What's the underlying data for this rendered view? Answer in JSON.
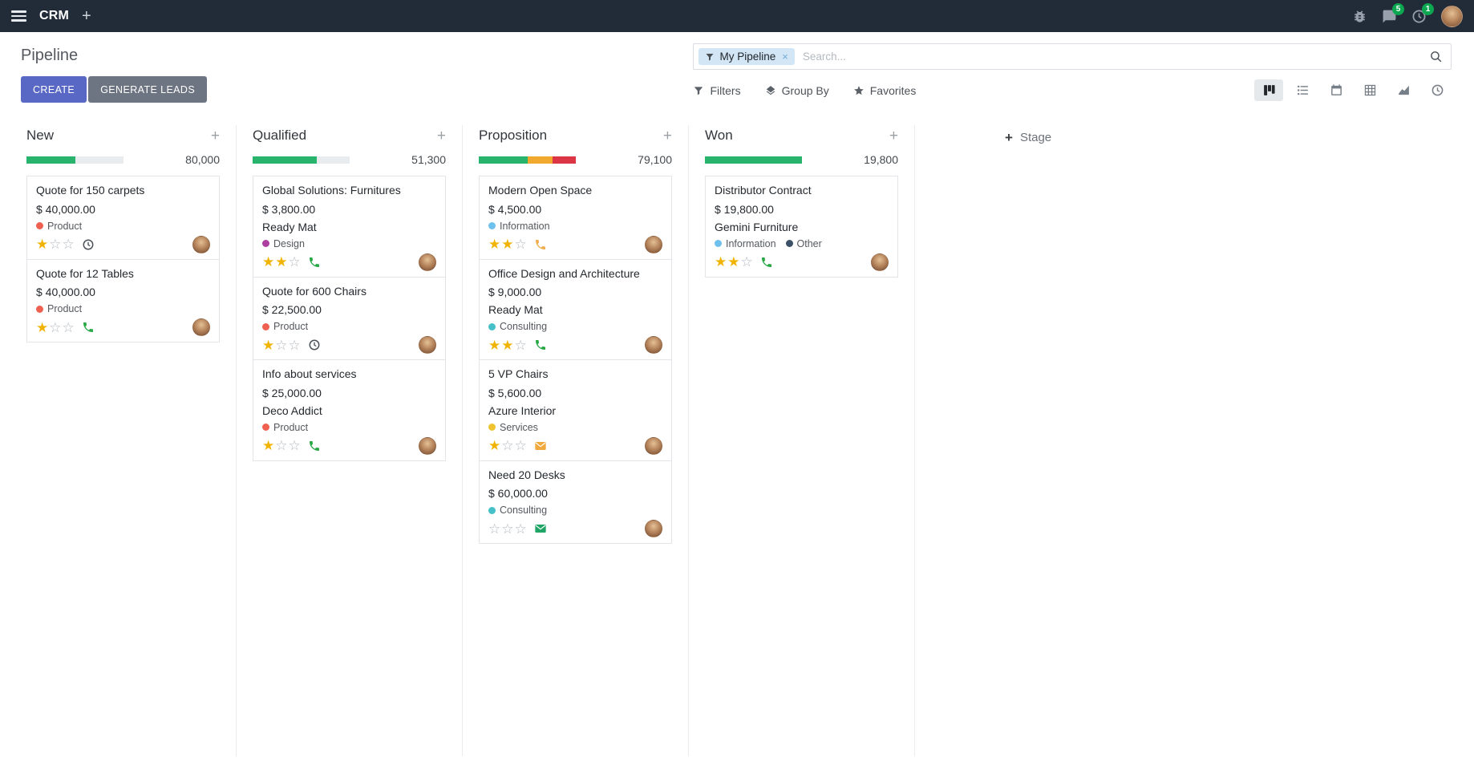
{
  "topbar": {
    "app_name": "CRM",
    "message_badge": "5",
    "activity_badge": "1",
    "icons": [
      "apps-menu-icon",
      "plus-icon",
      "debug-icon",
      "messages-icon",
      "activities-icon",
      "user-avatar"
    ]
  },
  "control_panel": {
    "title": "Pipeline",
    "create_label": "CREATE",
    "generate_leads_label": "GENERATE LEADS",
    "search": {
      "facet_label": "My Pipeline",
      "facet_remove": "×",
      "placeholder": "Search..."
    },
    "filters_label": "Filters",
    "group_by_label": "Group By",
    "favorites_label": "Favorites"
  },
  "view_switcher": {
    "views": [
      "kanban",
      "list",
      "calendar",
      "pivot",
      "graph",
      "activity"
    ],
    "active": "kanban"
  },
  "colors": {
    "primary_button": "#5a68c5",
    "secondary_button": "#6e7582",
    "progress_green": "#28b46c",
    "progress_yellow": "#f0a92e",
    "progress_red": "#dc3545",
    "star_gold": "#f0b400",
    "badge_green": "#0ca750",
    "facet_bg": "#d2e6f6"
  },
  "board": {
    "add_stage_label": "Stage",
    "columns": [
      {
        "name": "New",
        "total": "80,000",
        "progress_segments": [
          {
            "color": "#28b46c",
            "percent": 50
          }
        ],
        "cards": [
          {
            "title": "Quote for 150 carpets",
            "amount": "$ 40,000.00",
            "partner": "",
            "tags": [
              {
                "label": "Product",
                "color": "#f06050"
              }
            ],
            "stars_filled": 1,
            "activity": {
              "type": "clock",
              "color": "#495057"
            }
          },
          {
            "title": "Quote for 12 Tables",
            "amount": "$ 40,000.00",
            "partner": "",
            "tags": [
              {
                "label": "Product",
                "color": "#f06050"
              }
            ],
            "stars_filled": 1,
            "activity": {
              "type": "phone",
              "color": "#28a745"
            }
          }
        ]
      },
      {
        "name": "Qualified",
        "total": "51,300",
        "progress_segments": [
          {
            "color": "#28b46c",
            "percent": 66
          }
        ],
        "cards": [
          {
            "title": "Global Solutions: Furnitures",
            "amount": "$ 3,800.00",
            "partner": "Ready Mat",
            "tags": [
              {
                "label": "Design",
                "color": "#ad3fa0"
              }
            ],
            "stars_filled": 2,
            "activity": {
              "type": "phone",
              "color": "#28a745"
            }
          },
          {
            "title": "Quote for 600 Chairs",
            "amount": "$ 22,500.00",
            "partner": "",
            "tags": [
              {
                "label": "Product",
                "color": "#f06050"
              }
            ],
            "stars_filled": 1,
            "activity": {
              "type": "clock",
              "color": "#495057"
            }
          },
          {
            "title": "Info about services",
            "amount": "$ 25,000.00",
            "partner": "Deco Addict",
            "tags": [
              {
                "label": "Product",
                "color": "#f06050"
              }
            ],
            "stars_filled": 1,
            "activity": {
              "type": "phone",
              "color": "#28a745"
            }
          }
        ]
      },
      {
        "name": "Proposition",
        "total": "79,100",
        "progress_segments": [
          {
            "color": "#28b46c",
            "percent": 50
          },
          {
            "color": "#f0a92e",
            "percent": 26
          },
          {
            "color": "#dc3545",
            "percent": 24
          }
        ],
        "cards": [
          {
            "title": "Modern Open Space",
            "amount": "$ 4,500.00",
            "partner": "",
            "tags": [
              {
                "label": "Information",
                "color": "#6ec1ec"
              }
            ],
            "stars_filled": 2,
            "activity": {
              "type": "phone",
              "color": "#f0ad4e"
            }
          },
          {
            "title": "Office Design and Architecture",
            "amount": "$ 9,000.00",
            "partner": "Ready Mat",
            "tags": [
              {
                "label": "Consulting",
                "color": "#45c0c9"
              }
            ],
            "stars_filled": 2,
            "activity": {
              "type": "phone",
              "color": "#28a745"
            }
          },
          {
            "title": "5 VP Chairs",
            "amount": "$ 5,600.00",
            "partner": "Azure Interior",
            "tags": [
              {
                "label": "Services",
                "color": "#f0c332"
              }
            ],
            "stars_filled": 1,
            "activity": {
              "type": "envelope",
              "color": "#f0a93d"
            }
          },
          {
            "title": "Need 20 Desks",
            "amount": "$ 60,000.00",
            "partner": "",
            "tags": [
              {
                "label": "Consulting",
                "color": "#45c0c9"
              }
            ],
            "stars_filled": 0,
            "activity": {
              "type": "envelope",
              "color": "#21a567"
            }
          }
        ]
      },
      {
        "name": "Won",
        "total": "19,800",
        "progress_segments": [
          {
            "color": "#28b46c",
            "percent": 100
          }
        ],
        "cards": [
          {
            "title": "Distributor Contract",
            "amount": "$ 19,800.00",
            "partner": "Gemini Furniture",
            "tags": [
              {
                "label": "Information",
                "color": "#6ec1ec"
              },
              {
                "label": "Other",
                "color": "#3c5068"
              }
            ],
            "stars_filled": 2,
            "activity": {
              "type": "phone",
              "color": "#28a745"
            }
          }
        ]
      }
    ]
  }
}
